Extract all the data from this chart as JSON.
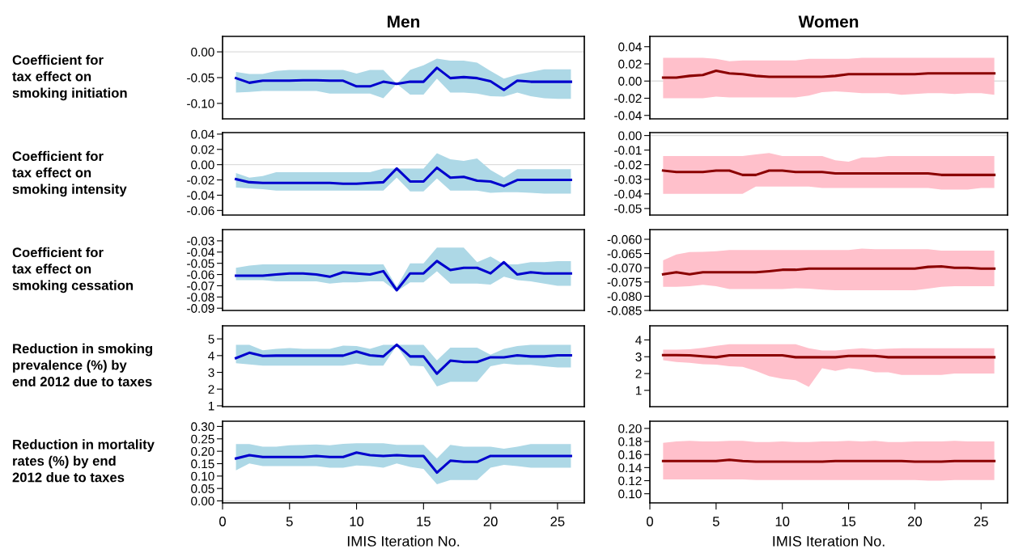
{
  "chart_data": [
    {
      "type": "line",
      "title": "Men",
      "ylabel": "Coefficient for\ntax effect on\nsmoking initiation",
      "x": [
        1,
        2,
        3,
        4,
        5,
        6,
        7,
        8,
        9,
        10,
        11,
        12,
        13,
        14,
        15,
        16,
        17,
        18,
        19,
        20,
        21,
        22,
        23,
        24,
        25,
        26
      ],
      "xlim": [
        0,
        27
      ],
      "xticks": [
        0,
        5,
        10,
        15,
        20,
        25
      ],
      "ylim": [
        -0.13,
        0.03
      ],
      "yticks": [
        {
          "value": 0,
          "label": "0.00"
        },
        {
          "value": -0.05,
          "label": "-0.05"
        },
        {
          "value": -0.1,
          "label": "-0.10"
        }
      ],
      "tick_labels": "y",
      "grid": false,
      "ref_lines": [
        {
          "axis": "y",
          "value": 0,
          "color": "#dddddd"
        }
      ],
      "series": [
        {
          "color": "#0000cd",
          "values": [
            -0.051,
            -0.06,
            -0.056,
            -0.056,
            -0.056,
            -0.055,
            -0.055,
            -0.056,
            -0.056,
            -0.067,
            -0.067,
            -0.058,
            -0.062,
            -0.058,
            -0.058,
            -0.031,
            -0.051,
            -0.049,
            -0.051,
            -0.057,
            -0.074,
            -0.056,
            -0.058,
            -0.058,
            -0.058,
            -0.058
          ],
          "upper": [
            -0.039,
            -0.043,
            -0.043,
            -0.037,
            -0.035,
            -0.035,
            -0.035,
            -0.035,
            -0.035,
            -0.042,
            -0.035,
            -0.035,
            -0.062,
            -0.035,
            -0.026,
            -0.013,
            -0.017,
            -0.017,
            -0.021,
            -0.037,
            -0.052,
            -0.044,
            -0.039,
            -0.034,
            -0.034,
            -0.034
          ],
          "lower": [
            -0.079,
            -0.078,
            -0.076,
            -0.076,
            -0.076,
            -0.076,
            -0.076,
            -0.081,
            -0.081,
            -0.081,
            -0.081,
            -0.09,
            -0.062,
            -0.083,
            -0.083,
            -0.052,
            -0.079,
            -0.079,
            -0.081,
            -0.086,
            -0.087,
            -0.079,
            -0.086,
            -0.09,
            -0.091,
            -0.091
          ]
        }
      ]
    },
    {
      "type": "line",
      "title": "Women",
      "x": [
        1,
        2,
        3,
        4,
        5,
        6,
        7,
        8,
        9,
        10,
        11,
        12,
        13,
        14,
        15,
        16,
        17,
        18,
        19,
        20,
        21,
        22,
        23,
        24,
        25,
        26
      ],
      "xlim": [
        0,
        27
      ],
      "xticks": [
        0,
        5,
        10,
        15,
        20,
        25
      ],
      "ylim": [
        -0.044,
        0.052
      ],
      "yticks": [
        {
          "value": 0.04,
          "label": "0.04"
        },
        {
          "value": 0.02,
          "label": "0.02"
        },
        {
          "value": 0,
          "label": "0.00"
        },
        {
          "value": -0.02,
          "label": "-0.02"
        },
        {
          "value": -0.04,
          "label": "-0.04"
        }
      ],
      "tick_labels": "y",
      "grid": false,
      "ref_lines": [
        {
          "axis": "y",
          "value": 0,
          "color": "#dddddd"
        }
      ],
      "series": [
        {
          "color": "#8b0000",
          "values": [
            0.004,
            0.004,
            0.006,
            0.007,
            0.012,
            0.009,
            0.008,
            0.006,
            0.005,
            0.005,
            0.005,
            0.005,
            0.005,
            0.006,
            0.008,
            0.008,
            0.008,
            0.008,
            0.008,
            0.008,
            0.009,
            0.009,
            0.009,
            0.009,
            0.009,
            0.009
          ],
          "upper": [
            0.027,
            0.027,
            0.027,
            0.027,
            0.026,
            0.023,
            0.024,
            0.024,
            0.024,
            0.024,
            0.024,
            0.026,
            0.026,
            0.026,
            0.026,
            0.027,
            0.027,
            0.027,
            0.027,
            0.027,
            0.027,
            0.027,
            0.027,
            0.027,
            0.027,
            0.027
          ],
          "lower": [
            -0.02,
            -0.02,
            -0.02,
            -0.02,
            -0.018,
            -0.019,
            -0.019,
            -0.019,
            -0.019,
            -0.019,
            -0.019,
            -0.017,
            -0.013,
            -0.012,
            -0.013,
            -0.014,
            -0.014,
            -0.014,
            -0.016,
            -0.015,
            -0.014,
            -0.014,
            -0.015,
            -0.014,
            -0.014,
            -0.016
          ]
        }
      ]
    },
    {
      "type": "line",
      "ylabel": "Coefficient for\ntax effect on\nsmoking intensity",
      "x": [
        1,
        2,
        3,
        4,
        5,
        6,
        7,
        8,
        9,
        10,
        11,
        12,
        13,
        14,
        15,
        16,
        17,
        18,
        19,
        20,
        21,
        22,
        23,
        24,
        25,
        26
      ],
      "xlim": [
        0,
        27
      ],
      "xticks": [
        0,
        5,
        10,
        15,
        20,
        25
      ],
      "ylim": [
        -0.066,
        0.042
      ],
      "yticks": [
        {
          "value": 0.04,
          "label": "0.04"
        },
        {
          "value": 0.02,
          "label": "0.02"
        },
        {
          "value": 0,
          "label": "0.00"
        },
        {
          "value": -0.02,
          "label": "-0.02"
        },
        {
          "value": -0.04,
          "label": "-0.04"
        },
        {
          "value": -0.06,
          "label": "-0.06"
        }
      ],
      "tick_labels": "y",
      "grid": false,
      "ref_lines": [
        {
          "axis": "y",
          "value": 0,
          "color": "#dddddd"
        }
      ],
      "series": [
        {
          "color": "#0000cd",
          "values": [
            -0.019,
            -0.023,
            -0.024,
            -0.024,
            -0.024,
            -0.024,
            -0.024,
            -0.024,
            -0.025,
            -0.025,
            -0.024,
            -0.023,
            -0.005,
            -0.022,
            -0.022,
            -0.004,
            -0.017,
            -0.016,
            -0.021,
            -0.022,
            -0.028,
            -0.02,
            -0.02,
            -0.02,
            -0.02,
            -0.02
          ],
          "upper": [
            -0.011,
            -0.017,
            -0.015,
            -0.01,
            -0.01,
            -0.01,
            -0.01,
            -0.01,
            -0.01,
            -0.01,
            -0.01,
            -0.005,
            -0.005,
            -0.005,
            -0.005,
            0.015,
            0.007,
            0.005,
            0.008,
            -0.007,
            -0.017,
            -0.006,
            -0.006,
            -0.006,
            -0.006,
            -0.006
          ],
          "lower": [
            -0.03,
            -0.031,
            -0.032,
            -0.034,
            -0.034,
            -0.034,
            -0.034,
            -0.034,
            -0.034,
            -0.034,
            -0.034,
            -0.034,
            -0.017,
            -0.035,
            -0.035,
            -0.018,
            -0.034,
            -0.034,
            -0.034,
            -0.037,
            -0.036,
            -0.036,
            -0.037,
            -0.038,
            -0.038,
            -0.038
          ]
        }
      ]
    },
    {
      "type": "line",
      "x": [
        1,
        2,
        3,
        4,
        5,
        6,
        7,
        8,
        9,
        10,
        11,
        12,
        13,
        14,
        15,
        16,
        17,
        18,
        19,
        20,
        21,
        22,
        23,
        24,
        25,
        26
      ],
      "xlim": [
        0,
        27
      ],
      "xticks": [
        0,
        5,
        10,
        15,
        20,
        25
      ],
      "ylim": [
        -0.0545,
        0.002
      ],
      "yticks": [
        {
          "value": 0,
          "label": "0.00"
        },
        {
          "value": -0.01,
          "label": "-0.01"
        },
        {
          "value": -0.02,
          "label": "-0.02"
        },
        {
          "value": -0.03,
          "label": "-0.03"
        },
        {
          "value": -0.04,
          "label": "-0.04"
        },
        {
          "value": -0.05,
          "label": "-0.05"
        }
      ],
      "tick_labels": "y",
      "grid": false,
      "ref_lines": [
        {
          "axis": "y",
          "value": 0,
          "color": "#dddddd"
        }
      ],
      "series": [
        {
          "color": "#8b0000",
          "values": [
            -0.024,
            -0.025,
            -0.025,
            -0.025,
            -0.024,
            -0.024,
            -0.027,
            -0.027,
            -0.024,
            -0.024,
            -0.025,
            -0.025,
            -0.025,
            -0.026,
            -0.026,
            -0.026,
            -0.026,
            -0.026,
            -0.026,
            -0.026,
            -0.026,
            -0.027,
            -0.027,
            -0.027,
            -0.027,
            -0.027
          ],
          "upper": [
            -0.014,
            -0.014,
            -0.014,
            -0.014,
            -0.014,
            -0.014,
            -0.014,
            -0.013,
            -0.012,
            -0.014,
            -0.014,
            -0.014,
            -0.014,
            -0.017,
            -0.018,
            -0.015,
            -0.015,
            -0.014,
            -0.014,
            -0.014,
            -0.014,
            -0.014,
            -0.014,
            -0.014,
            -0.014,
            -0.014
          ],
          "lower": [
            -0.04,
            -0.04,
            -0.04,
            -0.04,
            -0.04,
            -0.04,
            -0.04,
            -0.035,
            -0.035,
            -0.035,
            -0.035,
            -0.035,
            -0.036,
            -0.036,
            -0.036,
            -0.036,
            -0.036,
            -0.036,
            -0.036,
            -0.036,
            -0.036,
            -0.037,
            -0.037,
            -0.037,
            -0.036,
            -0.036
          ]
        }
      ]
    },
    {
      "type": "line",
      "ylabel": "Coefficient for\ntax effect on\nsmoking cessation",
      "x": [
        1,
        2,
        3,
        4,
        5,
        6,
        7,
        8,
        9,
        10,
        11,
        12,
        13,
        14,
        15,
        16,
        17,
        18,
        19,
        20,
        21,
        22,
        23,
        24,
        25,
        26
      ],
      "xlim": [
        0,
        27
      ],
      "xticks": [
        0,
        5,
        10,
        15,
        20,
        25
      ],
      "ylim": [
        -0.092,
        -0.02
      ],
      "yticks": [
        {
          "value": -0.03,
          "label": "-0.03"
        },
        {
          "value": -0.04,
          "label": "-0.04"
        },
        {
          "value": -0.05,
          "label": "-0.05"
        },
        {
          "value": -0.06,
          "label": "-0.06"
        },
        {
          "value": -0.07,
          "label": "-0.07"
        },
        {
          "value": -0.08,
          "label": "-0.08"
        },
        {
          "value": -0.09,
          "label": "-0.09"
        }
      ],
      "tick_labels": "y",
      "grid": false,
      "series": [
        {
          "color": "#0000cd",
          "values": [
            -0.061,
            -0.061,
            -0.061,
            -0.06,
            -0.059,
            -0.059,
            -0.06,
            -0.062,
            -0.058,
            -0.059,
            -0.06,
            -0.057,
            -0.074,
            -0.059,
            -0.059,
            -0.048,
            -0.056,
            -0.054,
            -0.054,
            -0.059,
            -0.049,
            -0.06,
            -0.058,
            -0.059,
            -0.059,
            -0.059
          ],
          "upper": [
            -0.054,
            -0.052,
            -0.051,
            -0.051,
            -0.051,
            -0.051,
            -0.051,
            -0.051,
            -0.051,
            -0.051,
            -0.051,
            -0.051,
            -0.071,
            -0.05,
            -0.05,
            -0.036,
            -0.036,
            -0.036,
            -0.049,
            -0.044,
            -0.051,
            -0.051,
            -0.049,
            -0.049,
            -0.048,
            -0.048
          ],
          "lower": [
            -0.065,
            -0.065,
            -0.065,
            -0.066,
            -0.066,
            -0.066,
            -0.066,
            -0.068,
            -0.067,
            -0.067,
            -0.066,
            -0.066,
            -0.075,
            -0.067,
            -0.067,
            -0.057,
            -0.068,
            -0.068,
            -0.068,
            -0.069,
            -0.062,
            -0.065,
            -0.066,
            -0.068,
            -0.07,
            -0.07
          ]
        }
      ]
    },
    {
      "type": "line",
      "x": [
        1,
        2,
        3,
        4,
        5,
        6,
        7,
        8,
        9,
        10,
        11,
        12,
        13,
        14,
        15,
        16,
        17,
        18,
        19,
        20,
        21,
        22,
        23,
        24,
        25,
        26
      ],
      "xlim": [
        0,
        27
      ],
      "xticks": [
        0,
        5,
        10,
        15,
        20,
        25
      ],
      "ylim": [
        -0.085,
        -0.0566
      ],
      "yticks": [
        {
          "value": -0.06,
          "label": "-0.060"
        },
        {
          "value": -0.065,
          "label": "-0.065"
        },
        {
          "value": -0.07,
          "label": "-0.070"
        },
        {
          "value": -0.075,
          "label": "-0.075"
        },
        {
          "value": -0.08,
          "label": "-0.080"
        },
        {
          "value": -0.085,
          "label": "-0.085"
        }
      ],
      "tick_labels": "y",
      "grid": false,
      "series": [
        {
          "color": "#8b0000",
          "values": [
            -0.0723,
            -0.0716,
            -0.0723,
            -0.0716,
            -0.0716,
            -0.0716,
            -0.0716,
            -0.0716,
            -0.0712,
            -0.0707,
            -0.0707,
            -0.0703,
            -0.0703,
            -0.0703,
            -0.0703,
            -0.0703,
            -0.0703,
            -0.0703,
            -0.0703,
            -0.0703,
            -0.0697,
            -0.0695,
            -0.07,
            -0.07,
            -0.0703,
            -0.0703
          ],
          "upper": [
            -0.0674,
            -0.0653,
            -0.0645,
            -0.0644,
            -0.0642,
            -0.0638,
            -0.0638,
            -0.0638,
            -0.0638,
            -0.0638,
            -0.0638,
            -0.0638,
            -0.0638,
            -0.0638,
            -0.0638,
            -0.0633,
            -0.0635,
            -0.0635,
            -0.0635,
            -0.0635,
            -0.0635,
            -0.064,
            -0.064,
            -0.064,
            -0.064,
            -0.064
          ],
          "lower": [
            -0.0767,
            -0.0767,
            -0.0765,
            -0.076,
            -0.0765,
            -0.0775,
            -0.0775,
            -0.0775,
            -0.0775,
            -0.0775,
            -0.0772,
            -0.0773,
            -0.0777,
            -0.0779,
            -0.0779,
            -0.0779,
            -0.0779,
            -0.0779,
            -0.0779,
            -0.0779,
            -0.0773,
            -0.0767,
            -0.0765,
            -0.0765,
            -0.0765,
            -0.0765
          ]
        }
      ]
    },
    {
      "type": "line",
      "ylabel": "Reduction in smoking\nprevalence (%) by\nend 2012 due to taxes",
      "x": [
        1,
        2,
        3,
        4,
        5,
        6,
        7,
        8,
        9,
        10,
        11,
        12,
        13,
        14,
        15,
        16,
        17,
        18,
        19,
        20,
        21,
        22,
        23,
        24,
        25,
        26
      ],
      "xlim": [
        0,
        27
      ],
      "xticks": [
        0,
        5,
        10,
        15,
        20,
        25
      ],
      "ylim": [
        0.95,
        5.78
      ],
      "yticks": [
        1,
        2,
        3,
        4,
        5
      ],
      "tick_labels": "y",
      "grid": false,
      "series": [
        {
          "color": "#0000cd",
          "values": [
            3.85,
            4.17,
            3.98,
            4.0,
            4.0,
            4.0,
            4.0,
            4.0,
            4.0,
            4.25,
            4.02,
            3.95,
            4.65,
            3.95,
            3.95,
            2.92,
            3.7,
            3.62,
            3.62,
            3.9,
            3.9,
            4.02,
            3.95,
            3.95,
            4.02,
            4.02
          ],
          "upper": [
            4.65,
            4.65,
            4.32,
            4.4,
            4.45,
            4.4,
            4.4,
            4.4,
            4.6,
            4.57,
            4.4,
            4.65,
            4.65,
            4.65,
            4.65,
            3.72,
            4.48,
            4.48,
            4.48,
            4.05,
            4.4,
            4.57,
            4.65,
            4.65,
            4.65,
            4.65
          ],
          "lower": [
            3.55,
            3.47,
            3.4,
            3.4,
            3.4,
            3.4,
            3.4,
            3.4,
            3.4,
            3.52,
            3.4,
            3.4,
            4.6,
            3.4,
            3.37,
            2.16,
            2.43,
            2.43,
            2.43,
            3.37,
            3.52,
            3.45,
            3.45,
            3.37,
            3.29,
            3.29
          ]
        }
      ]
    },
    {
      "type": "line",
      "x": [
        1,
        2,
        3,
        4,
        5,
        6,
        7,
        8,
        9,
        10,
        11,
        12,
        13,
        14,
        15,
        16,
        17,
        18,
        19,
        20,
        21,
        22,
        23,
        24,
        25,
        26
      ],
      "xlim": [
        0,
        27
      ],
      "xticks": [
        0,
        5,
        10,
        15,
        20,
        25
      ],
      "ylim": [
        0.03,
        4.84
      ],
      "yticks": [
        1,
        2,
        3,
        4
      ],
      "tick_labels": "y",
      "grid": false,
      "series": [
        {
          "color": "#8b0000",
          "values": [
            3.1,
            3.1,
            3.08,
            3.02,
            2.97,
            3.08,
            3.08,
            3.08,
            3.08,
            3.08,
            2.97,
            2.97,
            2.97,
            2.97,
            3.05,
            3.05,
            3.05,
            2.97,
            2.97,
            2.97,
            2.97,
            2.97,
            2.97,
            2.97,
            2.97,
            2.97
          ],
          "upper": [
            3.42,
            3.42,
            3.45,
            3.53,
            3.65,
            3.74,
            3.74,
            3.74,
            3.74,
            3.74,
            3.74,
            3.5,
            3.37,
            3.37,
            3.45,
            3.5,
            3.45,
            3.48,
            3.5,
            3.5,
            3.5,
            3.5,
            3.5,
            3.5,
            3.5,
            3.5
          ],
          "lower": [
            2.8,
            2.69,
            2.64,
            2.56,
            2.53,
            2.43,
            2.4,
            2.16,
            1.84,
            1.69,
            1.61,
            1.21,
            2.32,
            2.16,
            2.32,
            2.24,
            2.08,
            2.08,
            1.92,
            1.92,
            1.92,
            1.92,
            2.0,
            2.0,
            2.0,
            2.0
          ]
        }
      ]
    },
    {
      "type": "line",
      "ylabel": "Reduction in mortality\nrates (%) by end\n2012 due to taxes",
      "xlabel": "IMIS Iteration No.",
      "x": [
        1,
        2,
        3,
        4,
        5,
        6,
        7,
        8,
        9,
        10,
        11,
        12,
        13,
        14,
        15,
        16,
        17,
        18,
        19,
        20,
        21,
        22,
        23,
        24,
        25,
        26
      ],
      "xlim": [
        0,
        27
      ],
      "xticks": [
        0,
        5,
        10,
        15,
        20,
        25
      ],
      "ylim": [
        -0.008,
        0.321
      ],
      "yticks": [
        {
          "value": 0.3,
          "label": "0.30"
        },
        {
          "value": 0.25,
          "label": "0.25"
        },
        {
          "value": 0.2,
          "label": "0.20"
        },
        {
          "value": 0.15,
          "label": "0.15"
        },
        {
          "value": 0.1,
          "label": "0.10"
        },
        {
          "value": 0.05,
          "label": "0.05"
        },
        {
          "value": 0,
          "label": "0.00"
        }
      ],
      "grid": false,
      "ref_lines": [
        {
          "axis": "y",
          "value": 0,
          "color": "#dddddd"
        }
      ],
      "series": [
        {
          "color": "#0000cd",
          "values": [
            0.171,
            0.184,
            0.177,
            0.177,
            0.177,
            0.177,
            0.181,
            0.177,
            0.177,
            0.195,
            0.184,
            0.181,
            0.184,
            0.181,
            0.181,
            0.114,
            0.162,
            0.157,
            0.157,
            0.181,
            0.181,
            0.181,
            0.181,
            0.181,
            0.181,
            0.181
          ],
          "upper": [
            0.229,
            0.229,
            0.218,
            0.218,
            0.224,
            0.226,
            0.227,
            0.224,
            0.23,
            0.232,
            0.232,
            0.232,
            0.226,
            0.226,
            0.226,
            0.171,
            0.226,
            0.218,
            0.218,
            0.218,
            0.21,
            0.218,
            0.229,
            0.229,
            0.229,
            0.229
          ],
          "lower": [
            0.123,
            0.151,
            0.14,
            0.14,
            0.14,
            0.14,
            0.14,
            0.134,
            0.134,
            0.143,
            0.14,
            0.134,
            0.151,
            0.137,
            0.129,
            0.067,
            0.084,
            0.084,
            0.084,
            0.134,
            0.145,
            0.14,
            0.134,
            0.134,
            0.134,
            0.134
          ]
        }
      ]
    },
    {
      "type": "line",
      "xlabel": "IMIS Iteration No.",
      "x": [
        1,
        2,
        3,
        4,
        5,
        6,
        7,
        8,
        9,
        10,
        11,
        12,
        13,
        14,
        15,
        16,
        17,
        18,
        19,
        20,
        21,
        22,
        23,
        24,
        25,
        26
      ],
      "xlim": [
        0,
        27
      ],
      "xticks": [
        0,
        5,
        10,
        15,
        20,
        25
      ],
      "ylim": [
        0.086,
        0.211
      ],
      "yticks": [
        {
          "value": 0.2,
          "label": "0.20"
        },
        {
          "value": 0.18,
          "label": "0.18"
        },
        {
          "value": 0.16,
          "label": "0.16"
        },
        {
          "value": 0.14,
          "label": "0.14"
        },
        {
          "value": 0.12,
          "label": "0.12"
        },
        {
          "value": 0.1,
          "label": "0.10"
        }
      ],
      "grid": false,
      "series": [
        {
          "color": "#8b0000",
          "values": [
            0.15,
            0.15,
            0.15,
            0.15,
            0.15,
            0.152,
            0.15,
            0.149,
            0.149,
            0.149,
            0.149,
            0.149,
            0.149,
            0.15,
            0.15,
            0.15,
            0.15,
            0.15,
            0.15,
            0.149,
            0.149,
            0.149,
            0.15,
            0.15,
            0.15,
            0.15
          ],
          "upper": [
            0.178,
            0.18,
            0.181,
            0.18,
            0.18,
            0.181,
            0.181,
            0.179,
            0.179,
            0.18,
            0.179,
            0.179,
            0.18,
            0.18,
            0.181,
            0.18,
            0.181,
            0.179,
            0.179,
            0.18,
            0.18,
            0.18,
            0.181,
            0.18,
            0.18,
            0.18
          ],
          "lower": [
            0.122,
            0.122,
            0.122,
            0.122,
            0.122,
            0.122,
            0.122,
            0.121,
            0.121,
            0.121,
            0.121,
            0.121,
            0.121,
            0.121,
            0.121,
            0.121,
            0.121,
            0.121,
            0.121,
            0.121,
            0.12,
            0.12,
            0.121,
            0.121,
            0.121,
            0.121
          ]
        }
      ]
    }
  ]
}
